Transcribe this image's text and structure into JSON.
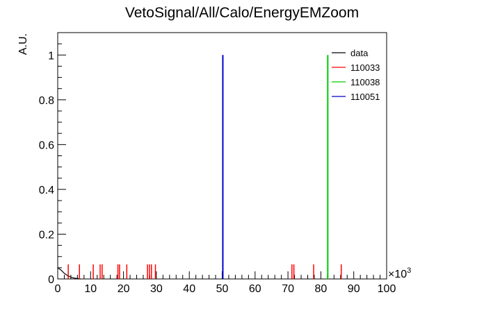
{
  "chart_data": {
    "type": "line",
    "title": "VetoSignal/All/Calo/EnergyEMZoom",
    "xlabel": "",
    "ylabel": "A.U.",
    "x_multiplier_label": "×10",
    "x_multiplier_exp": "3",
    "xlim": [
      0,
      100
    ],
    "ylim": [
      0,
      1.1
    ],
    "x_ticks": [
      0,
      10,
      20,
      30,
      40,
      50,
      60,
      70,
      80,
      90,
      100
    ],
    "y_ticks": [
      0,
      0.2,
      0.4,
      0.6,
      0.8,
      1
    ],
    "y_tick_labels": [
      "0",
      "0.2",
      "0.4",
      "0.6",
      "0.8",
      "1"
    ],
    "grid": false,
    "legend_position": "top-right",
    "series": [
      {
        "name": "data",
        "color": "#000000",
        "style": "curve",
        "points": [
          [
            0,
            0.05
          ],
          [
            1,
            0.04
          ],
          [
            2,
            0.025
          ],
          [
            3,
            0.015
          ],
          [
            4,
            0.008
          ],
          [
            5,
            0.004
          ],
          [
            6,
            0.002
          ],
          [
            7,
            0
          ]
        ]
      },
      {
        "name": "110033",
        "color": "#ff0000",
        "style": "spikes",
        "spikes": [
          [
            3.2,
            0.065
          ],
          [
            6.6,
            0.065
          ],
          [
            10.8,
            0.065
          ],
          [
            12.9,
            0.065
          ],
          [
            13.5,
            0.065
          ],
          [
            18.3,
            0.065
          ],
          [
            18.8,
            0.065
          ],
          [
            21.0,
            0.065
          ],
          [
            27.3,
            0.065
          ],
          [
            27.9,
            0.065
          ],
          [
            28.5,
            0.065
          ],
          [
            29.7,
            0.065
          ],
          [
            71.2,
            0.065
          ],
          [
            71.8,
            0.065
          ],
          [
            77.8,
            0.065
          ],
          [
            86.2,
            0.065
          ]
        ]
      },
      {
        "name": "110038",
        "color": "#00cc00",
        "style": "spikes",
        "spikes": [
          [
            82.1,
            1.0
          ]
        ]
      },
      {
        "name": "110051",
        "color": "#0000cc",
        "style": "spikes",
        "spikes": [
          [
            50.2,
            1.0
          ]
        ]
      }
    ]
  }
}
